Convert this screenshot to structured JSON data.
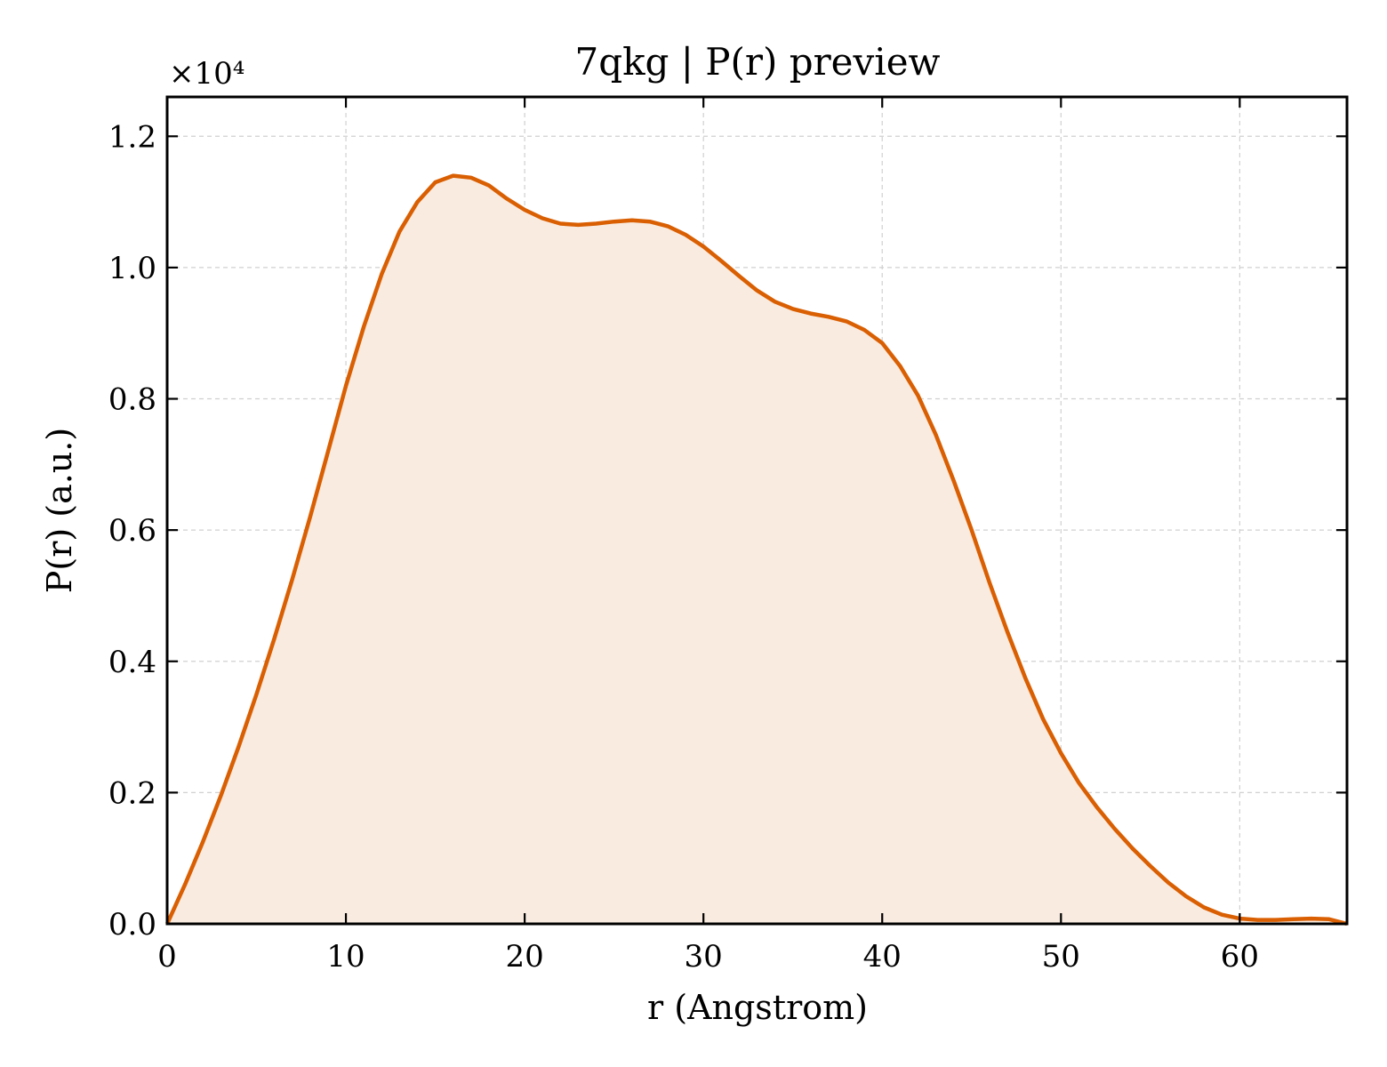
{
  "chart_data": {
    "type": "area",
    "title": "7qkg | P(r) preview",
    "xlabel": "r (Angstrom)",
    "ylabel": "P(r) (a.u.)",
    "y_scale_label": "×10⁴",
    "xlim": [
      0,
      66
    ],
    "ylim": [
      0,
      1.26
    ],
    "x_ticks": [
      0,
      10,
      20,
      30,
      40,
      50,
      60
    ],
    "x_tick_labels": [
      "0",
      "10",
      "20",
      "30",
      "40",
      "50",
      "60"
    ],
    "y_ticks": [
      0,
      0.2,
      0.4,
      0.6,
      0.8,
      1.0,
      1.2
    ],
    "y_tick_labels": [
      "0.0",
      "0.2",
      "0.4",
      "0.6",
      "0.8",
      "1.0",
      "1.2"
    ],
    "grid": true,
    "line_color": "#d95f02",
    "fill_color": "#f9ebe0",
    "series": [
      {
        "x": [
          0,
          1,
          2,
          3,
          4,
          5,
          6,
          7,
          8,
          9,
          10,
          11,
          12,
          13,
          14,
          15,
          16,
          17,
          18,
          19,
          20,
          21,
          22,
          23,
          24,
          25,
          26,
          27,
          28,
          29,
          30,
          31,
          32,
          33,
          34,
          35,
          36,
          37,
          38,
          39,
          40,
          41,
          42,
          43,
          44,
          45,
          46,
          47,
          48,
          49,
          50,
          51,
          52,
          53,
          54,
          55,
          56,
          57,
          58,
          59,
          60,
          61,
          62,
          63,
          64,
          65,
          66
        ],
        "y": [
          0.0,
          0.06,
          0.125,
          0.195,
          0.27,
          0.35,
          0.435,
          0.525,
          0.62,
          0.72,
          0.82,
          0.91,
          0.99,
          1.055,
          1.1,
          1.13,
          1.14,
          1.137,
          1.125,
          1.105,
          1.088,
          1.075,
          1.067,
          1.065,
          1.067,
          1.07,
          1.072,
          1.07,
          1.063,
          1.05,
          1.032,
          1.01,
          0.987,
          0.965,
          0.948,
          0.937,
          0.93,
          0.925,
          0.918,
          0.905,
          0.885,
          0.85,
          0.805,
          0.745,
          0.675,
          0.6,
          0.52,
          0.445,
          0.375,
          0.312,
          0.26,
          0.215,
          0.178,
          0.145,
          0.115,
          0.088,
          0.063,
          0.042,
          0.025,
          0.014,
          0.008,
          0.006,
          0.006,
          0.007,
          0.008,
          0.007,
          0.0
        ]
      }
    ]
  }
}
